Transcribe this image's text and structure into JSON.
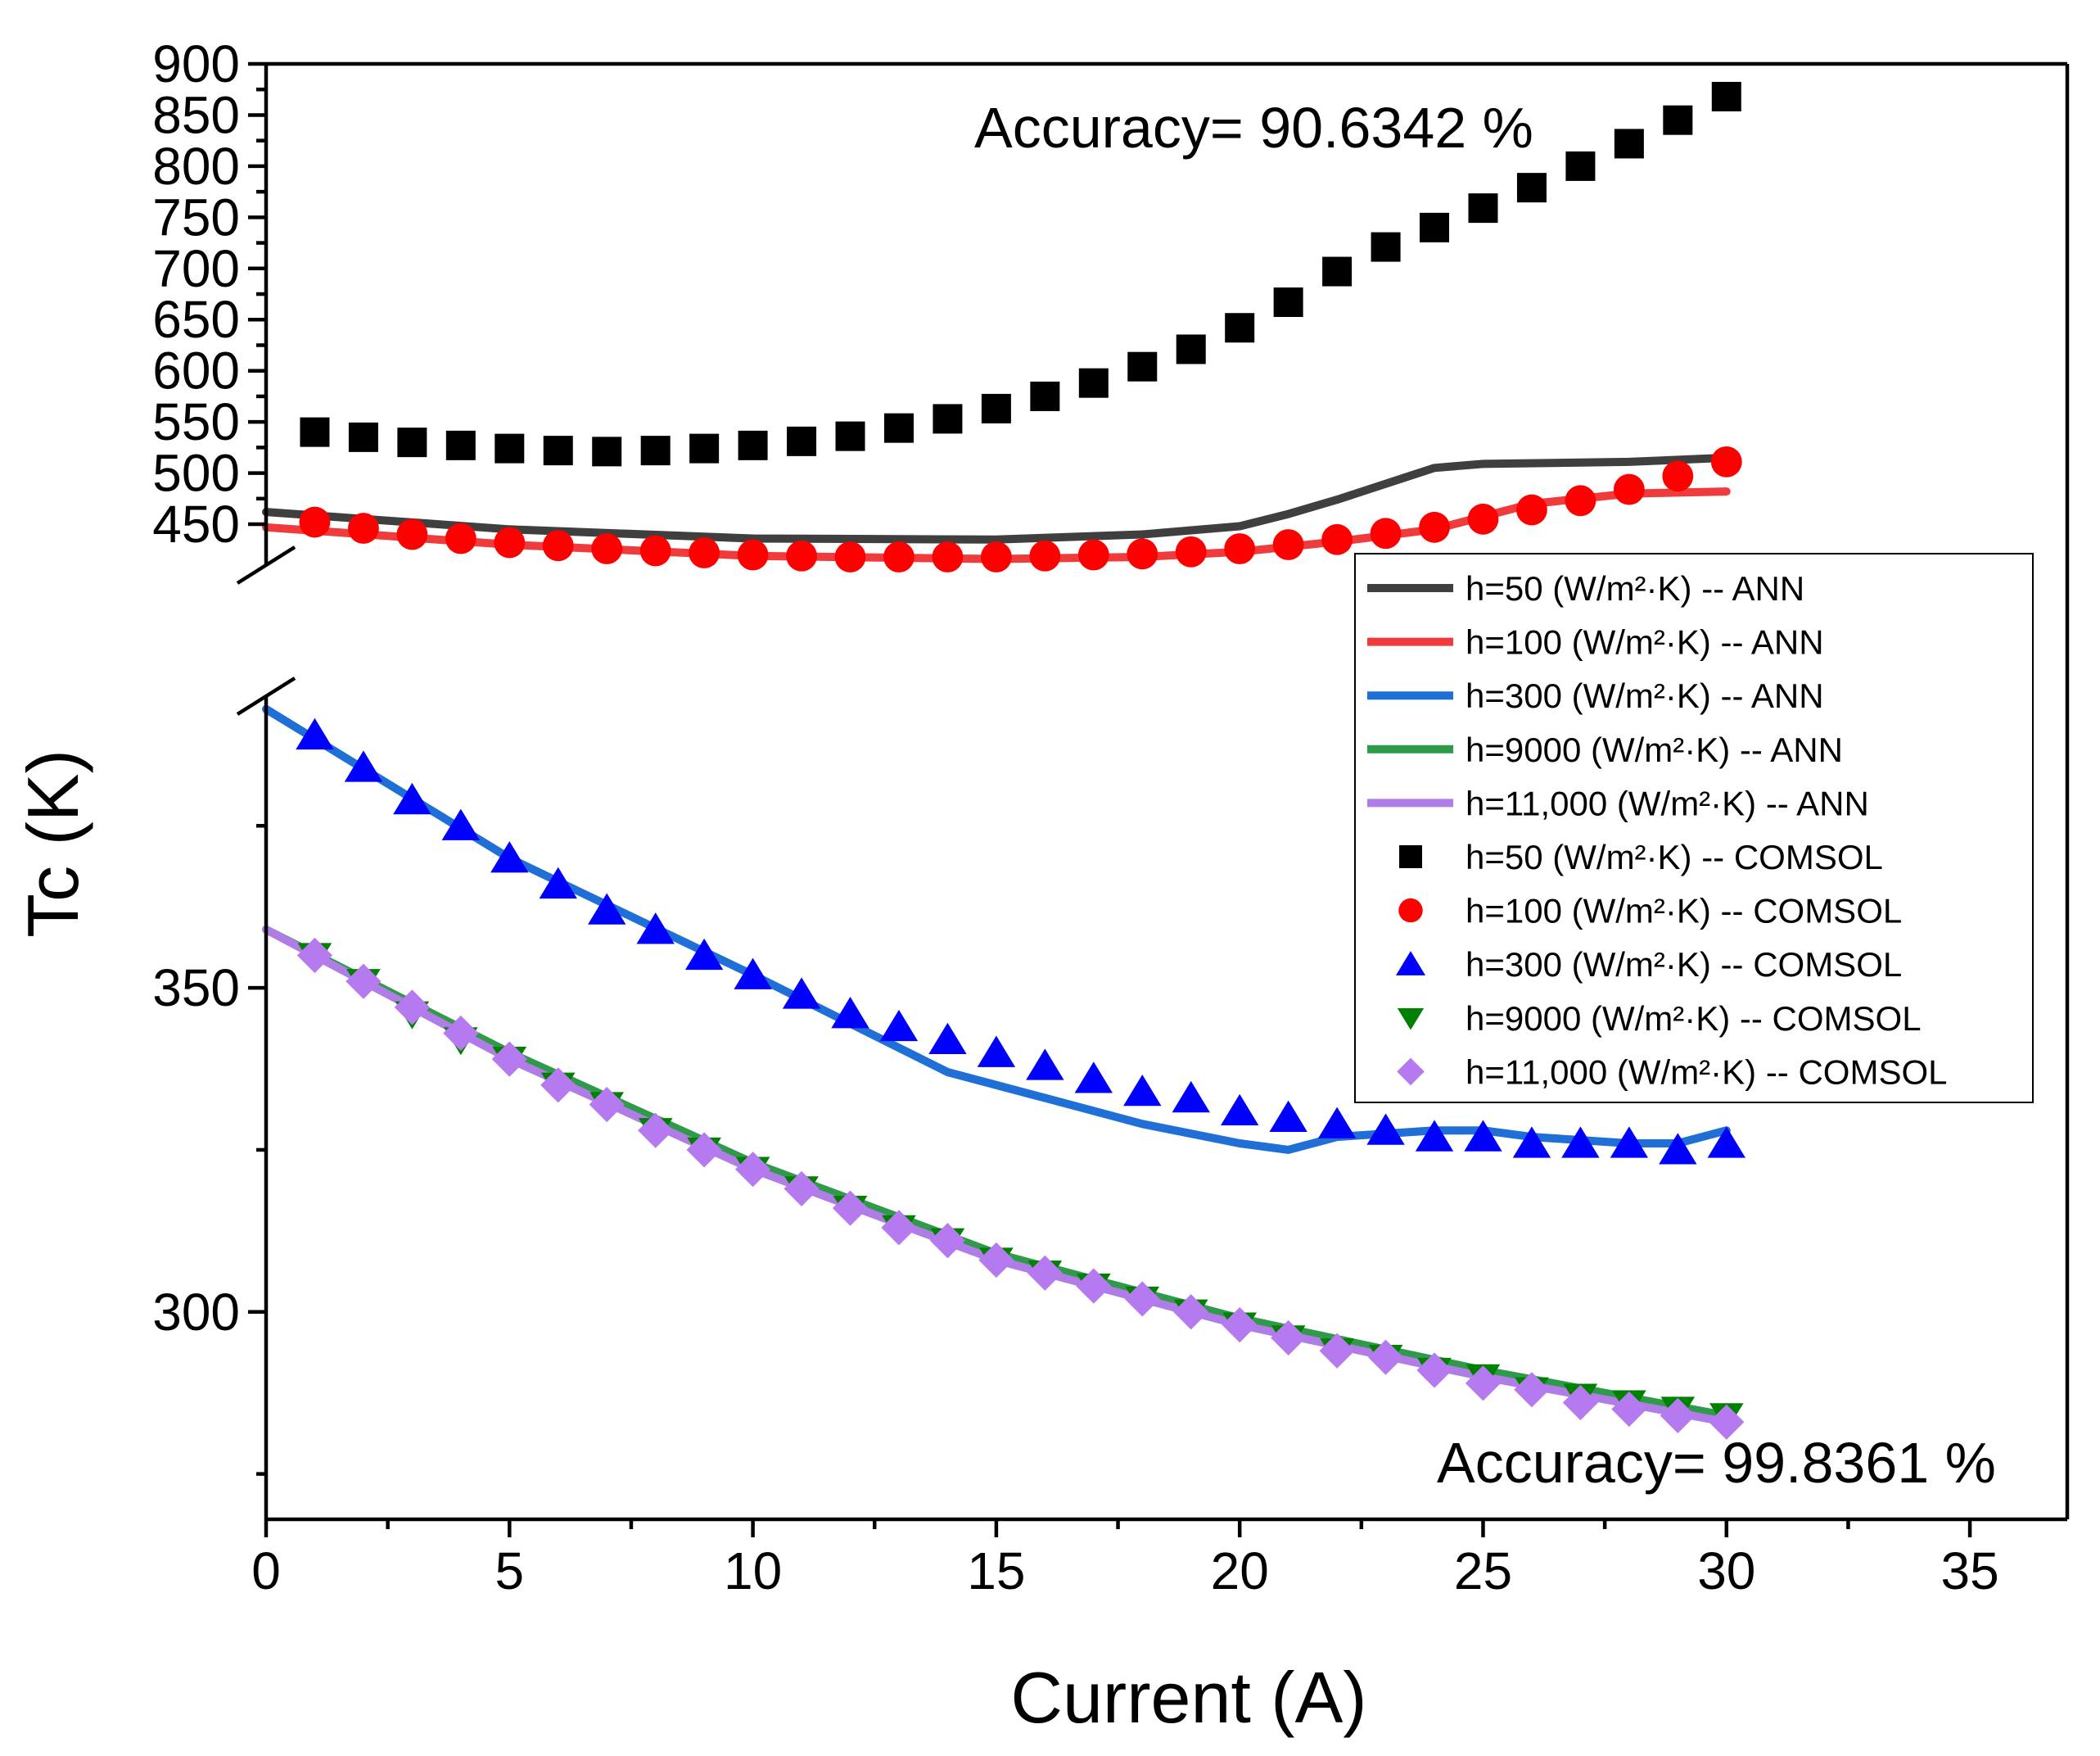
{
  "chart_data": {
    "type": "scatter",
    "xlabel": "Current (A)",
    "ylabel": "Tc (K)",
    "xlim": [
      0,
      37
    ],
    "x_ticks": [
      0,
      5,
      10,
      15,
      20,
      25,
      30,
      35
    ],
    "axis_break": true,
    "upper_panel": {
      "ylim": [
        410,
        900
      ],
      "y_ticks": [
        450,
        500,
        550,
        600,
        650,
        700,
        750,
        800,
        850,
        900
      ],
      "annotation": "Accuracy= 90.6342 %"
    },
    "lower_panel": {
      "ylim": [
        268,
        395
      ],
      "y_ticks": [
        300,
        350
      ],
      "annotation": "Accuracy= 99.8361 %"
    },
    "legend_placement": "right",
    "legend": [
      {
        "label": "h=50 (W/m²·K) -- ANN",
        "color": "#3f3f3f",
        "kind": "line"
      },
      {
        "label": "h=100 (W/m²·K) -- ANN",
        "color": "#ef3b3b",
        "kind": "line"
      },
      {
        "label": "h=300 (W/m²·K) -- ANN",
        "color": "#1f6fd6",
        "kind": "line"
      },
      {
        "label": "h=9000 (W/m²·K) -- ANN",
        "color": "#2e9a4a",
        "kind": "line"
      },
      {
        "label": "h=11,000 (W/m²·K) -- ANN",
        "color": "#b07ce6",
        "kind": "line"
      },
      {
        "label": "h=50 (W/m²·K) -- COMSOL",
        "color": "#000000",
        "kind": "square"
      },
      {
        "label": "h=100 (W/m²·K) -- COMSOL",
        "color": "#ff0000",
        "kind": "circle"
      },
      {
        "label": "h=300 (W/m²·K) -- COMSOL",
        "color": "#0000ff",
        "kind": "triangle-up"
      },
      {
        "label": "h=9000 (W/m²·K) -- COMSOL",
        "color": "#008000",
        "kind": "triangle-down"
      },
      {
        "label": "h=11,000 (W/m²·K) -- COMSOL",
        "color": "#b57af0",
        "kind": "diamond"
      }
    ],
    "series": [
      {
        "panel": "upper",
        "kind": "line",
        "color": "#3f3f3f",
        "x": [
          0,
          5,
          10,
          15,
          18,
          20,
          21,
          22,
          24,
          25,
          28,
          30
        ],
        "y": [
          462,
          445,
          436,
          435,
          440,
          448,
          460,
          474,
          505,
          509,
          511,
          515
        ]
      },
      {
        "panel": "upper",
        "kind": "line",
        "color": "#ef3b3b",
        "x": [
          0,
          5,
          10,
          15,
          18,
          20,
          21,
          22,
          24,
          26,
          28,
          30
        ],
        "y": [
          447,
          430,
          419,
          416,
          418,
          423,
          428,
          433,
          445,
          470,
          480,
          482
        ]
      },
      {
        "panel": "lower",
        "kind": "line",
        "color": "#1f6fd6",
        "x": [
          0,
          5,
          10,
          14,
          16,
          18,
          20,
          21,
          22,
          24,
          25,
          26,
          28,
          29,
          30
        ],
        "y": [
          393,
          370,
          352,
          337,
          333,
          329,
          326,
          325,
          327,
          328,
          328,
          327,
          326,
          326,
          328
        ]
      },
      {
        "panel": "lower",
        "kind": "line",
        "color": "#2e9a4a",
        "x": [
          0,
          5,
          10,
          15,
          20,
          25,
          30
        ],
        "y": [
          359,
          340,
          323,
          309,
          299,
          291,
          284
        ]
      },
      {
        "panel": "lower",
        "kind": "line",
        "color": "#b07ce6",
        "x": [
          0,
          5,
          10,
          15,
          20,
          25,
          30
        ],
        "y": [
          359,
          339,
          322,
          308,
          298,
          290,
          283
        ]
      },
      {
        "panel": "upper",
        "kind": "square",
        "color": "#000000",
        "x": [
          1,
          2,
          3,
          4,
          5,
          6,
          7,
          8,
          9,
          10,
          11,
          12,
          13,
          14,
          15,
          16,
          17,
          18,
          19,
          20,
          21,
          22,
          23,
          24,
          25,
          26,
          27,
          28,
          29,
          30
        ],
        "y": [
          540,
          535,
          530,
          527,
          524,
          522,
          521,
          522,
          524,
          527,
          531,
          536,
          544,
          553,
          563,
          575,
          588,
          604,
          621,
          642,
          667,
          697,
          721,
          740,
          759,
          779,
          800,
          822,
          845,
          868
        ]
      },
      {
        "panel": "upper",
        "kind": "circle",
        "color": "#ff0000",
        "x": [
          1,
          2,
          3,
          4,
          5,
          6,
          7,
          8,
          9,
          10,
          11,
          12,
          13,
          14,
          15,
          16,
          17,
          18,
          19,
          20,
          21,
          22,
          23,
          24,
          25,
          26,
          27,
          28,
          29,
          30
        ],
        "y": [
          452,
          446,
          440,
          436,
          432,
          429,
          426,
          424,
          422,
          420,
          419,
          418,
          418,
          418,
          418,
          419,
          420,
          421,
          423,
          426,
          430,
          435,
          441,
          447,
          455,
          464,
          473,
          484,
          497,
          511
        ]
      },
      {
        "panel": "lower",
        "kind": "triangle-up",
        "color": "#0000ff",
        "x": [
          1,
          2,
          3,
          4,
          5,
          6,
          7,
          8,
          9,
          10,
          11,
          12,
          13,
          14,
          15,
          16,
          17,
          18,
          19,
          20,
          21,
          22,
          23,
          24,
          25,
          26,
          27,
          28,
          29,
          30
        ],
        "y": [
          389,
          384,
          379,
          375,
          370,
          366,
          362,
          359,
          355,
          352,
          349,
          346,
          344,
          342,
          340,
          338,
          336,
          334,
          333,
          331,
          330,
          329,
          328,
          327,
          327,
          326,
          326,
          326,
          325,
          326
        ]
      },
      {
        "panel": "lower",
        "kind": "triangle-down",
        "color": "#008000",
        "x": [
          1,
          2,
          3,
          4,
          5,
          6,
          7,
          8,
          9,
          10,
          11,
          12,
          13,
          14,
          15,
          16,
          17,
          18,
          19,
          20,
          21,
          22,
          23,
          24,
          25,
          26,
          27,
          28,
          29,
          30
        ],
        "y": [
          355,
          351,
          346,
          342,
          339,
          335,
          332,
          328,
          325,
          322,
          319,
          316,
          313,
          311,
          308,
          306,
          304,
          302,
          300,
          298,
          296,
          294,
          293,
          291,
          290,
          288,
          287,
          286,
          285,
          284
        ]
      },
      {
        "panel": "lower",
        "kind": "diamond",
        "color": "#b57af0",
        "x": [
          1,
          2,
          3,
          4,
          5,
          6,
          7,
          8,
          9,
          10,
          11,
          12,
          13,
          14,
          15,
          16,
          17,
          18,
          19,
          20,
          21,
          22,
          23,
          24,
          25,
          26,
          27,
          28,
          29,
          30
        ],
        "y": [
          355,
          351,
          347,
          343,
          339,
          335,
          332,
          328,
          325,
          322,
          319,
          316,
          313,
          311,
          308,
          306,
          304,
          302,
          300,
          298,
          296,
          294,
          293,
          291,
          289,
          288,
          286,
          285,
          284,
          283
        ]
      }
    ]
  }
}
